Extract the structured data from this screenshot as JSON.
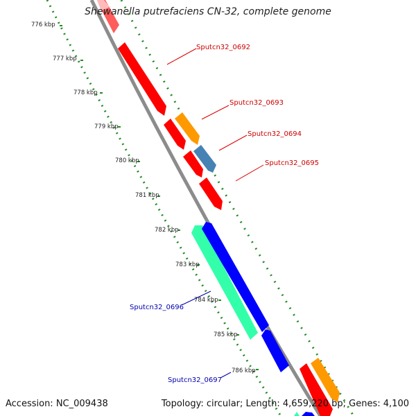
{
  "title": "Shewanella putrefaciens CN-32, complete genome",
  "accession": "Accession: NC_009438",
  "topology": "Topology: circular; Length: 4,659,220 bp; Genes: 4,100",
  "ticks": [
    "776 kbp",
    "777 kbp",
    "778 kbp",
    "779 kbp",
    "780 kbp",
    "781 kbp",
    "782 kbp",
    "783 kbp",
    "784 kbp",
    "785 kbp",
    "786 kbp"
  ],
  "genes": [
    {
      "name": "Sputcn32_0692",
      "color": "#cc0000"
    },
    {
      "name": "Sputcn32_0693",
      "color": "#cc0000"
    },
    {
      "name": "Sputcn32_0694",
      "color": "#cc0000"
    },
    {
      "name": "Sputcn32_0695",
      "color": "#cc0000"
    },
    {
      "name": "Sputcn32_0696",
      "color": "#0000aa"
    },
    {
      "name": "Sputcn32_0697",
      "color": "#0000aa"
    }
  ],
  "colors": {
    "forward_cds": "#ff0000",
    "rna": "#ff9900",
    "misc": "#4682b4",
    "reverse_cds": "#0000ff",
    "reverse_other": "#33ffaa",
    "backbone": "#8c8c8c",
    "gc_ticks": "#228b22"
  }
}
